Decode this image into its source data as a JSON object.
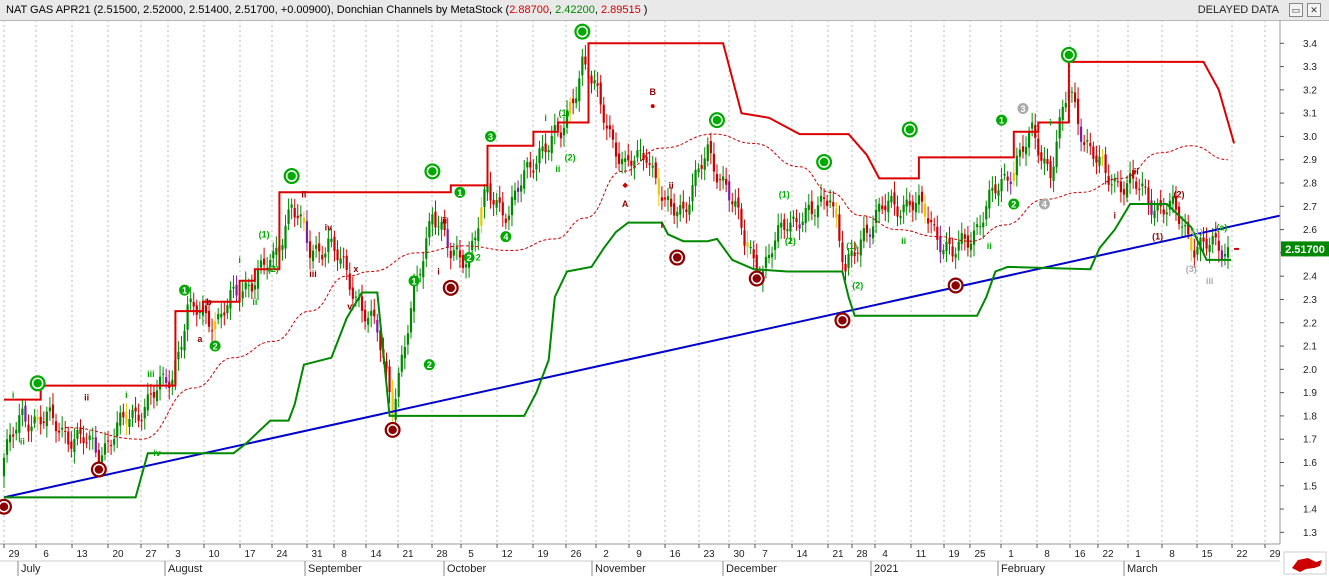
{
  "window": {
    "symbol_line": "NAT GAS APR21 (2.51500, 2.52000, 2.51400, 2.51700, +0.00900), Donchian Channels by MetaStock (",
    "dc_upper": "2.88700",
    "dc_lower": "2.42200",
    "dc_mid": "2.89515",
    "close_paren": " )",
    "status": "DELAYED DATA",
    "restore_icon": "restore-icon",
    "close_icon": "close-icon"
  },
  "colors": {
    "upper_channel": "#dd0000",
    "lower_channel": "#008800",
    "mid_line": "#cc0000",
    "trendline": "#0000cc",
    "bar_up": "#008800",
    "bar_down": "#cc0000",
    "bar_neutral": "#7a1fa2",
    "bar_yellow": "#e8c800",
    "price_label_bg": "#008800",
    "wave_green": "#00aa00",
    "wave_maroon": "#8b0000",
    "wave_grey": "#aaaaaa"
  },
  "chart_data": {
    "type": "candlestick",
    "instrument": "NAT GAS APR21",
    "last_price": "2.51700",
    "ylim": [
      1.25,
      3.5
    ],
    "yticks": [
      "3.4",
      "3.3",
      "3.2",
      "3.1",
      "3.0",
      "2.9",
      "2.8",
      "2.7",
      "2.6",
      "2.5",
      "2.4",
      "2.3",
      "2.2",
      "2.1",
      "2.0",
      "1.9",
      "1.8",
      "1.7",
      "1.6",
      "1.5",
      "1.4",
      "1.3"
    ],
    "x_day_labels": [
      "29",
      "6",
      "13",
      "20",
      "27",
      "3",
      "10",
      "17",
      "24",
      "31",
      "8",
      "14",
      "21",
      "28",
      "5",
      "12",
      "19",
      "26",
      "2",
      "9",
      "16",
      "23",
      "30",
      "7",
      "14",
      "21",
      "28",
      "4",
      "11",
      "19",
      "25",
      "1",
      "8",
      "16",
      "22",
      "1",
      "8",
      "15",
      "22",
      "29"
    ],
    "month_labels": [
      "July",
      "August",
      "September",
      "October",
      "November",
      "December",
      "2021",
      "February",
      "March"
    ],
    "donchian_upper": [
      [
        0,
        1.87
      ],
      [
        12,
        1.87
      ],
      [
        12,
        1.93
      ],
      [
        56,
        1.93
      ],
      [
        56,
        2.25
      ],
      [
        65,
        2.25
      ],
      [
        65,
        2.29
      ],
      [
        77,
        2.29
      ],
      [
        77,
        2.38
      ],
      [
        82,
        2.38
      ],
      [
        82,
        2.43
      ],
      [
        90,
        2.43
      ],
      [
        90,
        2.76
      ],
      [
        146,
        2.76
      ],
      [
        146,
        2.79
      ],
      [
        158,
        2.79
      ],
      [
        158,
        2.96
      ],
      [
        173,
        2.96
      ],
      [
        173,
        3.02
      ],
      [
        181,
        3.02
      ],
      [
        181,
        3.06
      ],
      [
        191,
        3.06
      ],
      [
        191,
        3.4
      ],
      [
        235,
        3.4
      ],
      [
        241,
        3.1
      ],
      [
        250,
        3.08
      ],
      [
        260,
        3.01
      ],
      [
        276,
        3.01
      ],
      [
        282,
        2.92
      ],
      [
        286,
        2.82
      ],
      [
        299,
        2.82
      ],
      [
        299,
        2.91
      ],
      [
        330,
        2.91
      ],
      [
        330,
        3.02
      ],
      [
        338,
        3.02
      ],
      [
        338,
        3.06
      ],
      [
        348,
        3.06
      ],
      [
        348,
        3.32
      ],
      [
        392,
        3.32
      ],
      [
        397,
        3.2
      ],
      [
        402,
        2.97
      ]
    ],
    "donchian_lower": [
      [
        0,
        1.45
      ],
      [
        43,
        1.45
      ],
      [
        47,
        1.64
      ],
      [
        65,
        1.64
      ],
      [
        75,
        1.64
      ],
      [
        79,
        1.68
      ],
      [
        83,
        1.73
      ],
      [
        87,
        1.78
      ],
      [
        93,
        1.78
      ],
      [
        95,
        1.85
      ],
      [
        98,
        2.02
      ],
      [
        107,
        2.05
      ],
      [
        112,
        2.22
      ],
      [
        117,
        2.33
      ],
      [
        122,
        2.33
      ],
      [
        126,
        1.8
      ],
      [
        170,
        1.8
      ],
      [
        174,
        1.9
      ],
      [
        178,
        2.04
      ],
      [
        180,
        2.31
      ],
      [
        184,
        2.42
      ],
      [
        192,
        2.44
      ],
      [
        196,
        2.52
      ],
      [
        200,
        2.59
      ],
      [
        204,
        2.63
      ],
      [
        215,
        2.63
      ],
      [
        217,
        2.58
      ],
      [
        222,
        2.55
      ],
      [
        230,
        2.55
      ],
      [
        233,
        2.56
      ],
      [
        238,
        2.47
      ],
      [
        245,
        2.43
      ],
      [
        256,
        2.42
      ],
      [
        274,
        2.42
      ],
      [
        276,
        2.31
      ],
      [
        278,
        2.23
      ],
      [
        318,
        2.23
      ],
      [
        321,
        2.31
      ],
      [
        324,
        2.42
      ],
      [
        328,
        2.44
      ],
      [
        355,
        2.43
      ],
      [
        358,
        2.52
      ],
      [
        363,
        2.6
      ],
      [
        368,
        2.71
      ],
      [
        380,
        2.71
      ],
      [
        388,
        2.61
      ],
      [
        393,
        2.47
      ],
      [
        401,
        2.47
      ]
    ],
    "middle_curve": [
      [
        20,
        1.75
      ],
      [
        45,
        1.7
      ],
      [
        62,
        1.92
      ],
      [
        75,
        2.05
      ],
      [
        88,
        2.12
      ],
      [
        100,
        2.25
      ],
      [
        112,
        2.4
      ],
      [
        120,
        2.42
      ],
      [
        135,
        2.5
      ],
      [
        150,
        2.53
      ],
      [
        166,
        2.51
      ],
      [
        180,
        2.56
      ],
      [
        190,
        2.65
      ],
      [
        202,
        2.85
      ],
      [
        215,
        2.95
      ],
      [
        232,
        3.01
      ],
      [
        245,
        2.97
      ],
      [
        260,
        2.87
      ],
      [
        270,
        2.76
      ],
      [
        280,
        2.66
      ],
      [
        292,
        2.6
      ],
      [
        305,
        2.57
      ],
      [
        316,
        2.55
      ],
      [
        327,
        2.62
      ],
      [
        340,
        2.73
      ],
      [
        352,
        2.76
      ],
      [
        365,
        2.82
      ],
      [
        378,
        2.93
      ],
      [
        388,
        2.96
      ],
      [
        400,
        2.9
      ]
    ],
    "trendline": [
      [
        0,
        1.45
      ],
      [
        417,
        2.66
      ]
    ],
    "candles_summary": "Daily OHLC bars, late June 2020 to late March 2021; last close 2.51700",
    "wave_labels": [
      {
        "text": "0",
        "color": "green",
        "style": "circle",
        "x": 11,
        "p": 1.94
      },
      {
        "text": "0",
        "color": "maroon",
        "style": "circle",
        "x": 0,
        "p": 1.41
      },
      {
        "text": "0",
        "color": "maroon",
        "style": "circle",
        "x": 31,
        "p": 1.57
      },
      {
        "text": "i",
        "color": "green",
        "style": "text",
        "x": 3,
        "p": 1.89
      },
      {
        "text": "ii",
        "color": "green",
        "style": "text",
        "x": 6,
        "p": 1.69
      },
      {
        "text": "ii",
        "color": "maroon",
        "style": "text",
        "x": 27,
        "p": 1.88
      },
      {
        "text": "i",
        "color": "green",
        "style": "text",
        "x": 40,
        "p": 1.89
      },
      {
        "text": "iii",
        "color": "green",
        "style": "text",
        "x": 48,
        "p": 1.98
      },
      {
        "text": "iv",
        "color": "green",
        "style": "text",
        "x": 50,
        "p": 1.64
      },
      {
        "text": "1",
        "color": "green",
        "style": "filled",
        "x": 59,
        "p": 2.34
      },
      {
        "text": "a",
        "color": "maroon",
        "style": "text",
        "x": 64,
        "p": 2.13
      },
      {
        "text": "b",
        "color": "maroon",
        "style": "text",
        "x": 67,
        "p": 2.29
      },
      {
        "text": "2",
        "color": "green",
        "style": "filled",
        "x": 69,
        "p": 2.1
      },
      {
        "text": "ii",
        "color": "green",
        "style": "text",
        "x": 82,
        "p": 2.29
      },
      {
        "text": "i",
        "color": "green",
        "style": "text",
        "x": 77,
        "p": 2.47
      },
      {
        "text": "(1)",
        "color": "green",
        "style": "text",
        "x": 85,
        "p": 2.58
      },
      {
        "text": "(2)",
        "color": "green",
        "style": "text",
        "x": 88,
        "p": 2.43
      },
      {
        "text": "0",
        "color": "green",
        "style": "circle",
        "x": 94,
        "p": 2.83
      },
      {
        "text": "ii",
        "color": "maroon",
        "style": "text",
        "x": 98,
        "p": 2.75
      },
      {
        "text": "iv",
        "color": "maroon",
        "style": "text",
        "x": 106,
        "p": 2.61
      },
      {
        "text": "iii",
        "color": "maroon",
        "style": "text",
        "x": 101,
        "p": 2.41
      },
      {
        "text": "x",
        "color": "maroon",
        "style": "text",
        "x": 115,
        "p": 2.43
      },
      {
        "text": "v",
        "color": "maroon",
        "style": "text",
        "x": 113,
        "p": 2.27
      },
      {
        "text": "0",
        "color": "maroon",
        "style": "circle",
        "x": 127,
        "p": 1.74
      },
      {
        "text": "1",
        "color": "green",
        "style": "filled",
        "x": 134,
        "p": 2.38
      },
      {
        "text": "2",
        "color": "green",
        "style": "filled",
        "x": 139,
        "p": 2.02
      },
      {
        "text": "0",
        "color": "green",
        "style": "circle",
        "x": 140,
        "p": 2.85
      },
      {
        "text": "ii",
        "color": "maroon",
        "style": "text",
        "x": 144,
        "p": 2.64
      },
      {
        "text": "i",
        "color": "maroon",
        "style": "text",
        "x": 142,
        "p": 2.42
      },
      {
        "text": "1",
        "color": "green",
        "style": "filled",
        "x": 149,
        "p": 2.76
      },
      {
        "text": "0",
        "color": "maroon",
        "style": "circle",
        "x": 146,
        "p": 2.35
      },
      {
        "text": "2",
        "color": "green",
        "style": "filled",
        "x": 152,
        "p": 2.48
      },
      {
        "text": "2",
        "color": "green",
        "style": "text",
        "x": 155,
        "p": 2.48
      },
      {
        "text": "3",
        "color": "green",
        "style": "filled",
        "x": 159,
        "p": 3.0
      },
      {
        "text": "4",
        "color": "green",
        "style": "filled",
        "x": 164,
        "p": 2.57
      },
      {
        "text": "i",
        "color": "green",
        "style": "text",
        "x": 177,
        "p": 3.08
      },
      {
        "text": "(1)",
        "color": "green",
        "style": "text",
        "x": 183,
        "p": 3.1
      },
      {
        "text": "(2)",
        "color": "green",
        "style": "text",
        "x": 185,
        "p": 2.91
      },
      {
        "text": "ii",
        "color": "green",
        "style": "text",
        "x": 181,
        "p": 2.86
      },
      {
        "text": "0",
        "color": "green",
        "style": "circle",
        "x": 189,
        "p": 3.45
      },
      {
        "text": "B",
        "color": "maroon",
        "style": "text",
        "x": 212,
        "p": 3.19
      },
      {
        "text": "A",
        "color": "maroon",
        "style": "text",
        "x": 203,
        "p": 2.71
      },
      {
        "text": "ii",
        "color": "maroon",
        "style": "text",
        "x": 218,
        "p": 2.79
      },
      {
        "text": "i",
        "color": "maroon",
        "style": "text",
        "x": 215,
        "p": 2.62
      },
      {
        "text": "0",
        "color": "maroon",
        "style": "circle",
        "x": 220,
        "p": 2.48
      },
      {
        "text": "0",
        "color": "green",
        "style": "circle",
        "x": 233,
        "p": 3.07
      },
      {
        "text": "0",
        "color": "maroon",
        "style": "circle",
        "x": 246,
        "p": 2.39
      },
      {
        "text": "(1)",
        "color": "green",
        "style": "text",
        "x": 255,
        "p": 2.75
      },
      {
        "text": "(2)",
        "color": "green",
        "style": "text",
        "x": 257,
        "p": 2.55
      },
      {
        "text": "0",
        "color": "green",
        "style": "circle",
        "x": 268,
        "p": 2.89
      },
      {
        "text": "(1)",
        "color": "green",
        "style": "text",
        "x": 277,
        "p": 2.53
      },
      {
        "text": "(2)",
        "color": "green",
        "style": "text",
        "x": 279,
        "p": 2.36
      },
      {
        "text": "0",
        "color": "maroon",
        "style": "circle",
        "x": 274,
        "p": 2.21
      },
      {
        "text": "ii",
        "color": "green",
        "style": "text",
        "x": 294,
        "p": 2.55
      },
      {
        "text": "0",
        "color": "green",
        "style": "circle",
        "x": 296,
        "p": 3.03
      },
      {
        "text": "0",
        "color": "maroon",
        "style": "circle",
        "x": 311,
        "p": 2.36
      },
      {
        "text": "ii",
        "color": "green",
        "style": "text",
        "x": 322,
        "p": 2.53
      },
      {
        "text": "1",
        "color": "green",
        "style": "filled",
        "x": 326,
        "p": 3.07
      },
      {
        "text": "2",
        "color": "green",
        "style": "filled",
        "x": 330,
        "p": 2.71
      },
      {
        "text": "3",
        "color": "grey",
        "style": "filled",
        "x": 333,
        "p": 3.12
      },
      {
        "text": "4",
        "color": "grey",
        "style": "filled",
        "x": 340,
        "p": 2.71
      },
      {
        "text": "i",
        "color": "green",
        "style": "text",
        "x": 342,
        "p": 3.06
      },
      {
        "text": "0",
        "color": "green",
        "style": "circle",
        "x": 348,
        "p": 3.35
      },
      {
        "text": "i",
        "color": "maroon",
        "style": "text",
        "x": 363,
        "p": 2.66
      },
      {
        "text": "ii",
        "color": "maroon",
        "style": "text",
        "x": 370,
        "p": 2.85
      },
      {
        "text": "(1)",
        "color": "maroon",
        "style": "text",
        "x": 377,
        "p": 2.57
      },
      {
        "text": "(2)",
        "color": "maroon",
        "style": "text",
        "x": 384,
        "p": 2.75
      },
      {
        "text": "(1)",
        "color": "grey",
        "style": "text",
        "x": 390,
        "p": 2.59
      },
      {
        "text": "(3)",
        "color": "grey",
        "style": "text",
        "x": 388,
        "p": 2.43
      },
      {
        "text": "iii",
        "color": "grey",
        "style": "text",
        "x": 394,
        "p": 2.38
      },
      {
        "text": "(a)",
        "color": "green",
        "style": "text",
        "x": 398,
        "p": 2.61
      }
    ]
  }
}
